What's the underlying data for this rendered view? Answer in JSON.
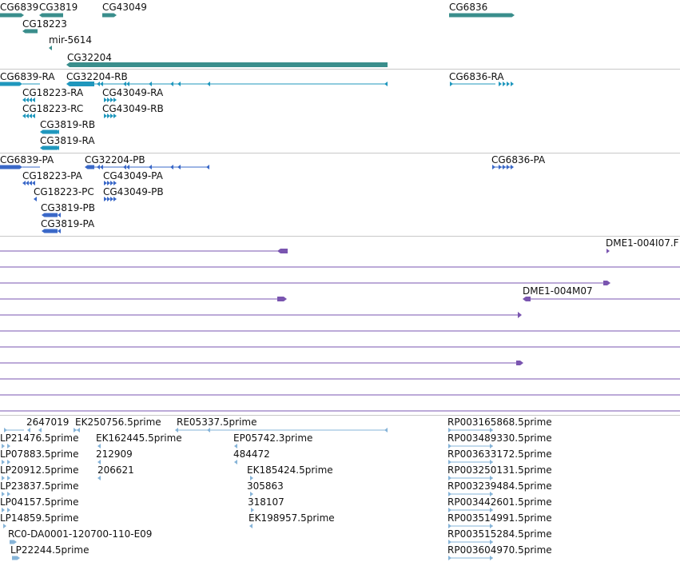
{
  "colors": {
    "gene": "#3a8e8c",
    "transcript": "#1f97bd",
    "protein": "#3a68c8",
    "est": "#7a55b0",
    "read": "#86b4d8"
  },
  "tracks": {
    "genes": {
      "labels": [
        "CG6839",
        "CG3819",
        "CG43049",
        "CG6836",
        "CG18223",
        "mir-5614",
        "CG32204"
      ]
    },
    "transcripts": {
      "labels": [
        "CG6839-RA",
        "CG32204-RB",
        "CG6836-RA",
        "CG18223-RA",
        "CG43049-RA",
        "CG18223-RC",
        "CG43049-RB",
        "CG3819-RB",
        "CG3819-RA"
      ]
    },
    "proteins": {
      "labels": [
        "CG6839-PA",
        "CG32204-PB",
        "CG6836-PA",
        "CG18223-PA",
        "CG43049-PA",
        "CG18223-PC",
        "CG43049-PB",
        "CG3819-PB",
        "CG3819-PA"
      ]
    },
    "ests": {
      "labels": [
        "DME1-004I07.F",
        "DME1-004M07"
      ]
    },
    "reads": {
      "labels": [
        "2647019",
        "EK250756.5prime",
        "RE05337.5prime",
        "RP003165868.5prime",
        "LP21476.5prime",
        "EK162445.5prime",
        "EP05742.3prime",
        "RP003489330.5prime",
        "LP07883.5prime",
        "212909",
        "484472",
        "RP003633172.5prime",
        "LP20912.5prime",
        "206621",
        "EK185424.5prime",
        "RP003250131.5prime",
        "LP23837.5prime",
        "305863",
        "RP003239484.5prime",
        "LP04157.5prime",
        "318107",
        "RP003442601.5prime",
        "LP14859.5prime",
        "EK198957.5prime",
        "RP003514991.5prime",
        "RC0-DA0001-120700-110-E09",
        "RP003515284.5prime",
        "LP22244.5prime",
        "RP003604970.5prime"
      ]
    }
  }
}
